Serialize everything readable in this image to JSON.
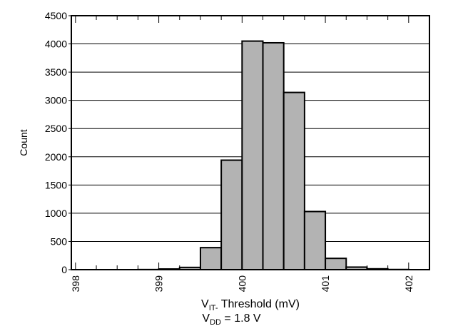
{
  "chart_data": {
    "type": "bar",
    "xlabel": "V",
    "xlabel_sub": "IT-",
    "xlabel_rest": " Threshold (mV)",
    "ylabel": "Count",
    "bin_width": 0.25,
    "bins": [
      {
        "start": 398.0,
        "count": 0
      },
      {
        "start": 398.25,
        "count": 0
      },
      {
        "start": 398.5,
        "count": 0
      },
      {
        "start": 398.75,
        "count": 2
      },
      {
        "start": 399.0,
        "count": 12
      },
      {
        "start": 399.25,
        "count": 40
      },
      {
        "start": 399.5,
        "count": 390
      },
      {
        "start": 399.75,
        "count": 1940
      },
      {
        "start": 400.0,
        "count": 4050
      },
      {
        "start": 400.25,
        "count": 4020
      },
      {
        "start": 400.5,
        "count": 3140
      },
      {
        "start": 400.75,
        "count": 1030
      },
      {
        "start": 401.0,
        "count": 200
      },
      {
        "start": 401.25,
        "count": 45
      },
      {
        "start": 401.5,
        "count": 15
      },
      {
        "start": 401.75,
        "count": 3
      }
    ],
    "xlim": [
      397.95,
      402.25
    ],
    "ylim": [
      0,
      4500
    ],
    "xticks": [
      "398",
      "399",
      "400",
      "401",
      "402"
    ],
    "yticks": [
      "0",
      "500",
      "1000",
      "1500",
      "2000",
      "2500",
      "3000",
      "3500",
      "4000",
      "4500"
    ],
    "grid": "horizontal",
    "bar_color": "#b3b3b3",
    "bar_edge_color": "#000000"
  },
  "caption": {
    "prefix": "V",
    "sub": "DD",
    "rest": " = 1.8 V"
  }
}
